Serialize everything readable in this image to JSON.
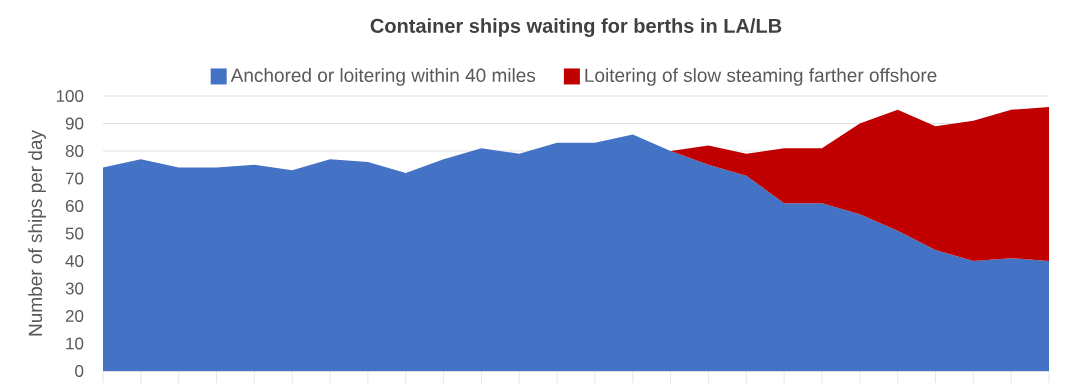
{
  "chart_data": {
    "type": "area",
    "stacked": true,
    "title": "Container ships waiting for berths in LA/LB",
    "ylabel": "Number of ships per day",
    "categories": [
      null,
      null,
      null,
      null,
      null,
      null,
      null,
      null,
      null,
      null,
      null,
      null,
      null,
      null,
      null,
      null,
      null,
      null,
      null,
      null,
      null,
      null,
      null,
      null,
      null,
      null
    ],
    "series": [
      {
        "name": "Anchored or loitering within 40 miles",
        "color": "#4472c4",
        "values": [
          74,
          77,
          74,
          74,
          75,
          73,
          77,
          76,
          72,
          77,
          81,
          79,
          83,
          83,
          86,
          80,
          75,
          71,
          61,
          61,
          57,
          51,
          44,
          40,
          41,
          40
        ]
      },
      {
        "name": "Loitering of slow steaming farther offshore",
        "color": "#c00000",
        "values": [
          null,
          null,
          null,
          null,
          null,
          null,
          null,
          null,
          null,
          null,
          null,
          null,
          null,
          null,
          null,
          0,
          7,
          8,
          20,
          20,
          33,
          44,
          45,
          51,
          54,
          56
        ]
      }
    ],
    "ylim": [
      0,
      100
    ],
    "yticks": [
      0,
      10,
      20,
      30,
      40,
      50,
      60,
      70,
      80,
      90,
      100
    ],
    "grid": "y",
    "legend": "top"
  }
}
